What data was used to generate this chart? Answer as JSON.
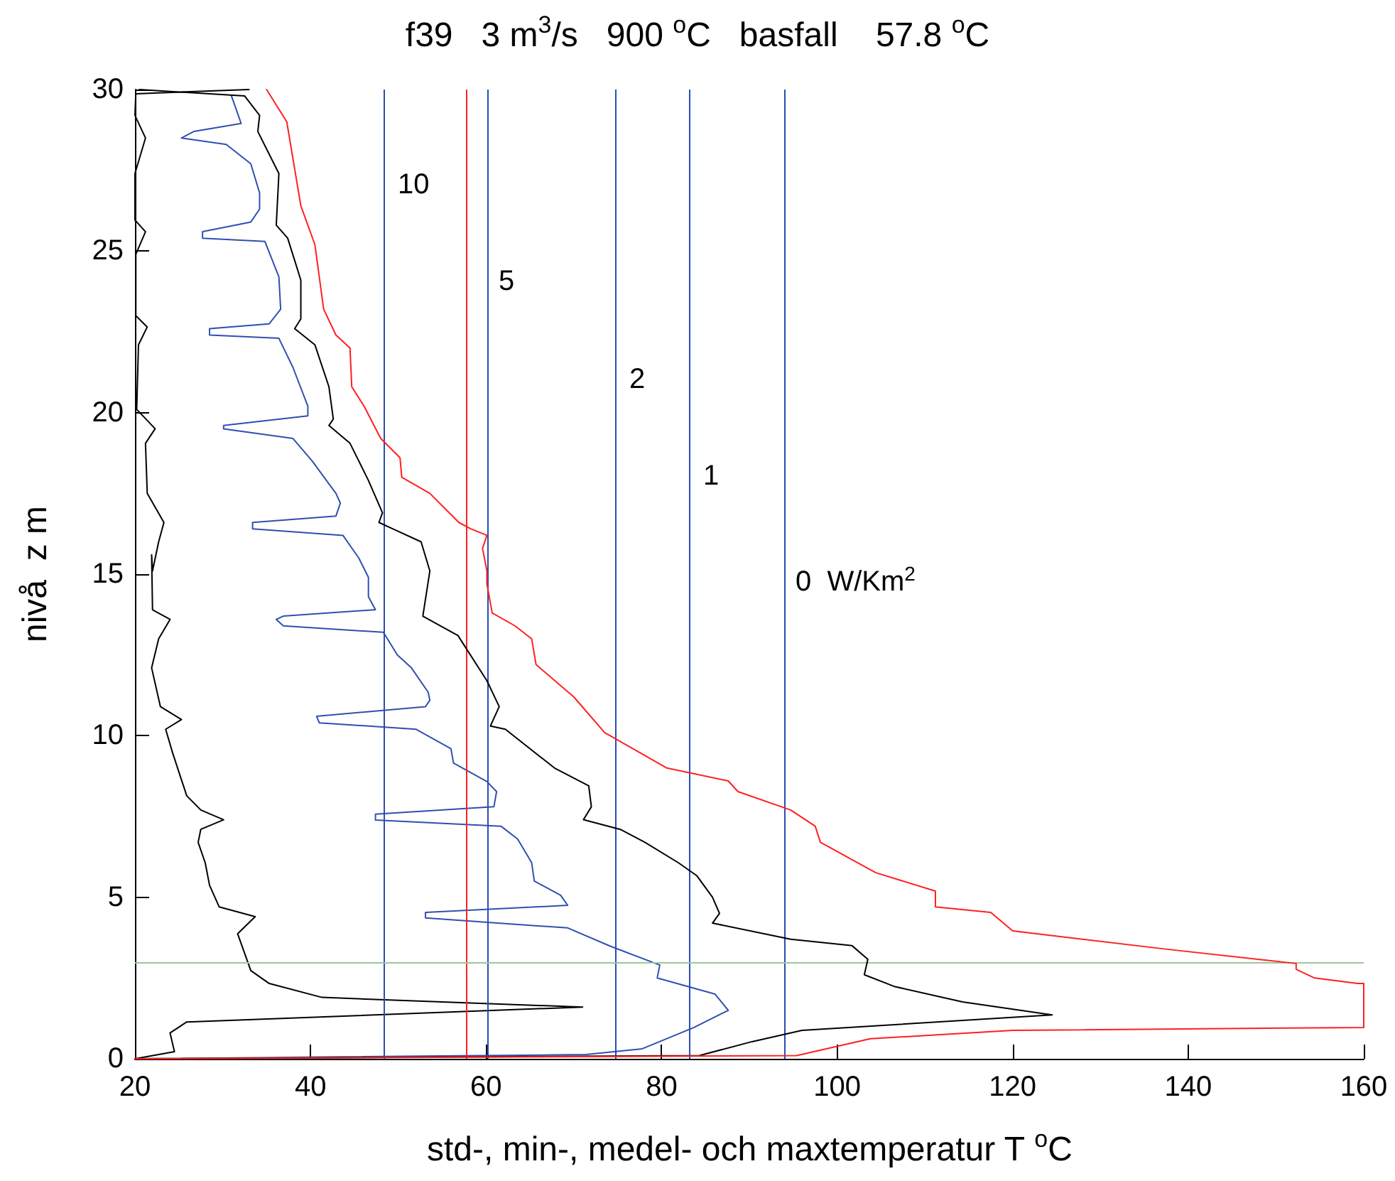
{
  "chart_data": {
    "type": "line",
    "title": "f39   3 m$^{3}$/s   900 $^{o}$C   basfall    57.8 $^{o}$C",
    "xlabel": "std-, min-, medel- och maxtemperatur T $^{o}$C",
    "ylabel": "nivå  z m",
    "xlim": [
      20,
      160
    ],
    "xticks": [
      20,
      40,
      60,
      80,
      100,
      120,
      140,
      160
    ],
    "ylim": [
      0,
      30
    ],
    "yticks": [
      0,
      5,
      10,
      15,
      20,
      25,
      30
    ],
    "marker": "none",
    "line_style": "solid",
    "series": [
      {
        "color": "#000000",
        "x": [
          33,
          20.1,
          20,
          21.2,
          20,
          20,
          21.2,
          20.1,
          20.1,
          21.4,
          20.4,
          20.2,
          22.3,
          21.2,
          21.4,
          23.3,
          22.7,
          22,
          21.9,
          22,
          24,
          22.7,
          21.9,
          22.9,
          25.3,
          23.5,
          24.3,
          25.9,
          27.5,
          30.1,
          27.5,
          27.2,
          28,
          28.5,
          29.6,
          33.7,
          31.7,
          33.2,
          35.3,
          41.3,
          71,
          25.9,
          24,
          24.5,
          20
        ],
        "values": [
          30,
          29.87,
          29.2,
          28.5,
          27.4,
          25.96,
          25.6,
          24.9,
          23,
          22.65,
          22.1,
          20.1,
          19.5,
          19.05,
          17.5,
          16.6,
          16,
          15.1,
          15.6,
          13.9,
          13.6,
          13,
          12.1,
          10.9,
          10.5,
          10.2,
          9.46,
          8.14,
          7.7,
          7.4,
          7.1,
          6.7,
          6.07,
          5.37,
          4.7,
          4.4,
          3.87,
          2.73,
          2.33,
          1.9,
          1.6,
          1.14,
          0.8,
          0.22,
          0
        ]
      },
      {
        "color": "#3050b0",
        "x": [
          31,
          32.1,
          26.7,
          25.3,
          30.4,
          33.2,
          34.2,
          34.2,
          33.2,
          27.7,
          27.7,
          34.8,
          36.4,
          36.6,
          35.3,
          28.5,
          28.5,
          36.4,
          38,
          39.7,
          39.7,
          30.1,
          30.1,
          38,
          40.2,
          42.9,
          43.4,
          42.9,
          33.4,
          33.4,
          43.7,
          45.5,
          46.6,
          46.6,
          47.4,
          36.9,
          36.1,
          36.9,
          48.3,
          49.9,
          51.5,
          53.4,
          53.6,
          53.1,
          40.7,
          41,
          52,
          56,
          56.3,
          60.1,
          61.2,
          60.9,
          47.4,
          47.4,
          61.7,
          63.6,
          65.2,
          65.5,
          68.5,
          69.3,
          53.1,
          53.1,
          69.3,
          74.2,
          79.8,
          79.5,
          86.1,
          87.6,
          83.7,
          77.8,
          71.4,
          20
        ],
        "values": [
          29.8,
          28.95,
          28.7,
          28.5,
          28.3,
          27.7,
          26.8,
          26.3,
          25.9,
          25.6,
          25.4,
          25.3,
          24.2,
          23.2,
          22.75,
          22.6,
          22.4,
          22.3,
          21.4,
          20.2,
          19.9,
          19.6,
          19.5,
          19.2,
          18.5,
          17.5,
          17.2,
          16.8,
          16.6,
          16.4,
          16.2,
          15.5,
          14.9,
          14.3,
          13.9,
          13.7,
          13.6,
          13.4,
          13.2,
          12.5,
          12.1,
          11.35,
          11.1,
          10.9,
          10.6,
          10.4,
          10.2,
          9.6,
          9.15,
          8.58,
          8.27,
          7.8,
          7.57,
          7.39,
          7.2,
          6.8,
          6.07,
          5.5,
          5.06,
          4.75,
          4.53,
          4.36,
          4.05,
          3.48,
          2.9,
          2.5,
          2,
          1.5,
          0.97,
          0.31,
          0.13,
          0
        ]
      },
      {
        "color": "#000000",
        "x": [
          20.5,
          32.5,
          34.2,
          34,
          36.4,
          36.1,
          37.4,
          38.9,
          38.9,
          38.2,
          40.5,
          42.1,
          42.6,
          42.1,
          44.5,
          46.6,
          48.2,
          47.8,
          49.4,
          52.6,
          53.6,
          52.8,
          56.8,
          60.1,
          61.5,
          60.5,
          62.2,
          67.8,
          71.7,
          72,
          71.1,
          75.3,
          78.1,
          81.9,
          84,
          85.8,
          86.6,
          85.8,
          94.7,
          101.7,
          103.5,
          103.1,
          106.5,
          114.3,
          124.5,
          96,
          90.3,
          84.3,
          20
        ],
        "values": [
          30,
          29.8,
          29.2,
          28.7,
          27.4,
          25.8,
          25.4,
          24.1,
          22.9,
          22.6,
          22.1,
          20.8,
          19.8,
          19.6,
          19.05,
          17.9,
          16.9,
          16.6,
          16.4,
          16,
          15.1,
          13.7,
          13.1,
          11.7,
          10.9,
          10.3,
          10.2,
          9,
          8.45,
          7.8,
          7.4,
          7.1,
          6.7,
          6.07,
          5.67,
          5,
          4.5,
          4.2,
          3.7,
          3.5,
          3.08,
          2.6,
          2.24,
          1.76,
          1.36,
          0.88,
          0.53,
          0.1,
          0
        ]
      },
      {
        "color": "#ff2020",
        "x": [
          35,
          37.3,
          38.1,
          38.9,
          40.5,
          41.5,
          42.9,
          44.5,
          44.7,
          46.1,
          48,
          50.2,
          50.4,
          53.6,
          56.9,
          58.3,
          60.1,
          59.6,
          60.1,
          60.1,
          60.7,
          63.3,
          65.2,
          65.7,
          70,
          73.5,
          80.6,
          87.6,
          88.7,
          94.7,
          97.5,
          98.1,
          104.4,
          111.2,
          111.2,
          117.5,
          120,
          137.6,
          152.3,
          152.3,
          154.4,
          159.3,
          160,
          160,
          120,
          103.8,
          95.4,
          20
        ],
        "values": [
          30,
          29,
          27.7,
          26.4,
          25.2,
          23.2,
          22.4,
          22,
          20.8,
          20.2,
          19.2,
          18.6,
          18,
          17.5,
          16.6,
          16.4,
          16.2,
          15.8,
          15.1,
          14.7,
          13.8,
          13.4,
          13,
          12.2,
          11.2,
          10.1,
          9,
          8.6,
          8.27,
          7.7,
          7.2,
          6.7,
          5.76,
          5.19,
          4.7,
          4.53,
          3.96,
          3.39,
          2.95,
          2.77,
          2.5,
          2.33,
          2.33,
          0.97,
          0.88,
          0.62,
          0.1,
          0
        ]
      }
    ],
    "ref_lines": [
      {
        "axis": "x",
        "value": 48.4,
        "color": "#2a4db3"
      },
      {
        "axis": "x",
        "value": 57.8,
        "color": "#ff2020"
      },
      {
        "axis": "x",
        "value": 60.2,
        "color": "#2a4db3"
      },
      {
        "axis": "x",
        "value": 74.8,
        "color": "#2a4db3"
      },
      {
        "axis": "x",
        "value": 83.2,
        "color": "#2a4db3"
      },
      {
        "axis": "x",
        "value": 94,
        "color": "#2a4db3"
      },
      {
        "axis": "y",
        "value": 3,
        "color": "#9cc79c"
      }
    ],
    "annotations": [
      "10",
      "5",
      "2",
      "1",
      "0  W/Km$^{2}$"
    ]
  }
}
